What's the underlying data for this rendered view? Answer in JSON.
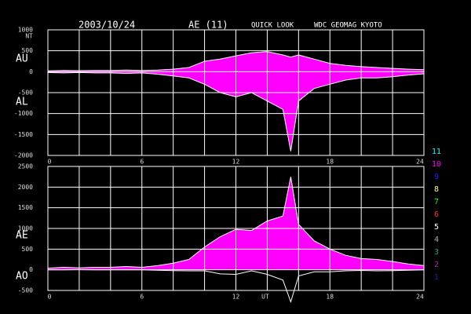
{
  "header": {
    "date": "2003/10/24",
    "index": "AE (11)",
    "mode": "QUICK LOOK",
    "source": "WDC GEOMAG KYOTO"
  },
  "chart_data": [
    {
      "type": "area",
      "ylabel": "NT",
      "x": [
        0,
        1,
        2,
        3,
        4,
        5,
        6,
        7,
        8,
        9,
        10,
        11,
        12,
        13,
        14,
        15,
        15.5,
        16,
        17,
        18,
        19,
        20,
        21,
        22,
        23,
        24
      ],
      "series": [
        {
          "name": "AU",
          "color": "#ffffff",
          "fill": "#ff00ff",
          "values": [
            20,
            30,
            25,
            30,
            30,
            40,
            30,
            40,
            60,
            100,
            250,
            300,
            380,
            450,
            480,
            400,
            350,
            400,
            300,
            200,
            150,
            120,
            100,
            80,
            60,
            50
          ]
        },
        {
          "name": "AL",
          "color": "#ffffff",
          "fill": "#ff00ff",
          "values": [
            -20,
            -30,
            -20,
            -30,
            -30,
            -40,
            -30,
            -60,
            -100,
            -150,
            -300,
            -500,
            -600,
            -500,
            -700,
            -900,
            -1900,
            -700,
            -400,
            -300,
            -200,
            -150,
            -150,
            -120,
            -80,
            -50
          ]
        }
      ],
      "xlim": [
        0,
        24
      ],
      "xticks": [
        0,
        6,
        12,
        18,
        24
      ],
      "xgrid": [
        0,
        2,
        4,
        6,
        8,
        10,
        12,
        14,
        16,
        18,
        20,
        22,
        24
      ],
      "ylim": [
        -2000,
        1000
      ],
      "yticks": [
        -2000,
        -1500,
        -1000,
        -500,
        0,
        500,
        1000
      ],
      "grid": true
    },
    {
      "type": "area",
      "xlabel": "UT",
      "x": [
        0,
        1,
        2,
        3,
        4,
        5,
        6,
        7,
        8,
        9,
        10,
        11,
        12,
        13,
        14,
        15,
        15.5,
        16,
        17,
        18,
        19,
        20,
        21,
        22,
        23,
        24
      ],
      "series": [
        {
          "name": "AE",
          "color": "#ffffff",
          "fill": "#ff00ff",
          "values": [
            40,
            60,
            45,
            60,
            60,
            80,
            60,
            100,
            160,
            250,
            550,
            800,
            980,
            950,
            1180,
            1300,
            2250,
            1100,
            700,
            500,
            350,
            270,
            250,
            200,
            140,
            100
          ]
        },
        {
          "name": "AO",
          "color": "#ffffff",
          "values": [
            0,
            0,
            2.5,
            0,
            0,
            0,
            0,
            -10,
            -20,
            -25,
            -25,
            -100,
            -110,
            -25,
            -110,
            -250,
            -775,
            -150,
            -50,
            -50,
            -25,
            -15,
            -25,
            -20,
            -10,
            0
          ]
        }
      ],
      "xlim": [
        0,
        24
      ],
      "xticks": [
        0,
        6,
        12,
        18,
        24
      ],
      "xgrid": [
        0,
        2,
        4,
        6,
        8,
        10,
        12,
        14,
        16,
        18,
        20,
        22,
        24
      ],
      "ylim": [
        -500,
        2500
      ],
      "yticks": [
        -500,
        0,
        500,
        1000,
        1500,
        2000,
        2500
      ],
      "grid": true
    }
  ],
  "station_legend": [
    {
      "label": "11",
      "color": "#00ffff"
    },
    {
      "label": "10",
      "color": "#ff00ff"
    },
    {
      "label": "9",
      "color": "#2020ff"
    },
    {
      "label": "8",
      "color": "#ffff80"
    },
    {
      "label": "7",
      "color": "#00ff00"
    },
    {
      "label": "6",
      "color": "#ff3030"
    },
    {
      "label": "5",
      "color": "#ffffff"
    },
    {
      "label": "4",
      "color": "#b0b0b0"
    },
    {
      "label": "3",
      "color": "#20a080"
    },
    {
      "label": "2",
      "color": "#b020b0"
    },
    {
      "label": "1",
      "color": "#2020a0"
    }
  ]
}
